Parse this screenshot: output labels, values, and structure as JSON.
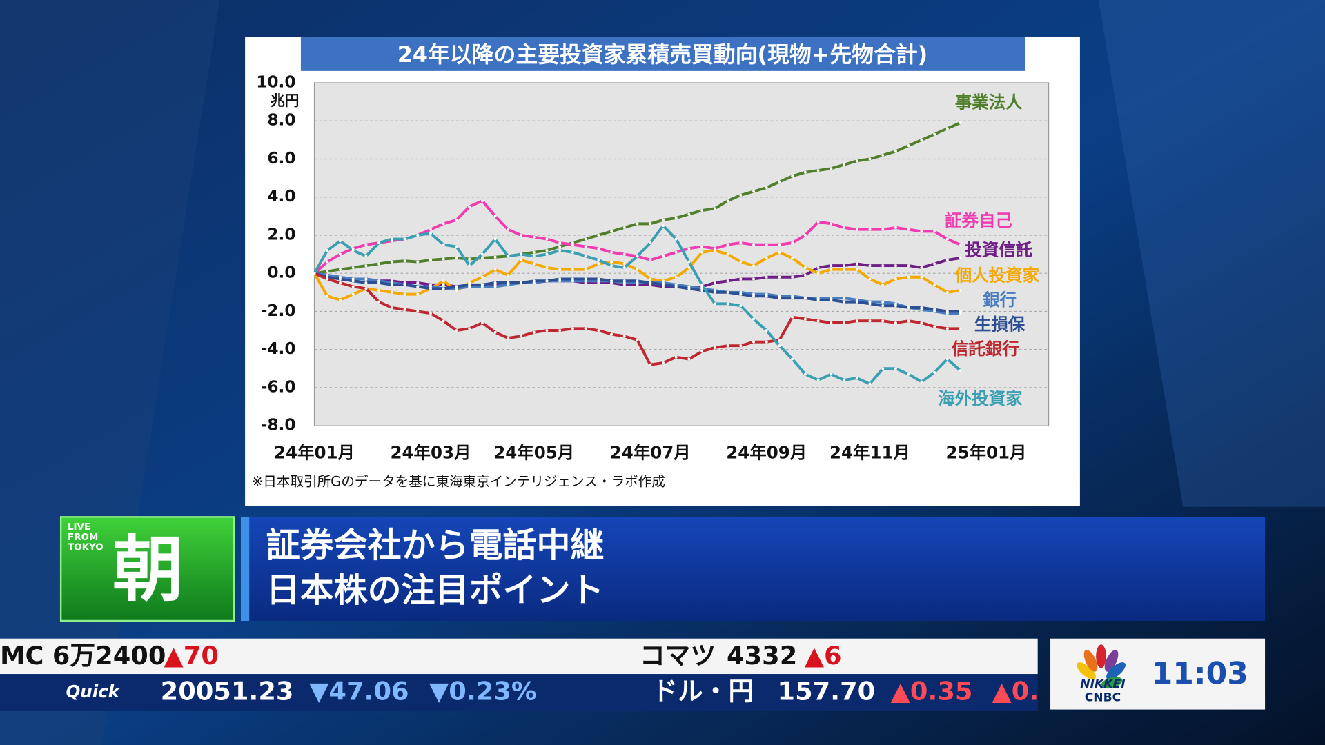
{
  "chart_data": {
    "type": "line",
    "title": "24年以降の主要投資家累積売買動向(現物+先物合計)",
    "y_unit": "兆円",
    "note": "※日本取引所Gのデータを基に東海東京インテリジェンス・ラボ作成",
    "categories": [
      "24年01月",
      null,
      null,
      null,
      null,
      null,
      null,
      null,
      null,
      "24年03月",
      null,
      null,
      null,
      null,
      null,
      null,
      null,
      "24年05月",
      null,
      null,
      null,
      null,
      null,
      null,
      null,
      null,
      "24年07月",
      null,
      null,
      null,
      null,
      null,
      null,
      null,
      null,
      "24年09月",
      null,
      null,
      null,
      null,
      null,
      null,
      null,
      "24年11月",
      null,
      null,
      null,
      null,
      null,
      null,
      null,
      null,
      "25年01月"
    ],
    "ylim": [
      -8,
      10
    ],
    "yticks": [
      {
        "value": 10,
        "label": "10.0"
      },
      {
        "value": 8,
        "label": "8.0"
      },
      {
        "value": 6,
        "label": "6.0"
      },
      {
        "value": 4,
        "label": "4.0"
      },
      {
        "value": 2,
        "label": "2.0"
      },
      {
        "value": 0,
        "label": "0.0"
      },
      {
        "value": -2,
        "label": "-2.0"
      },
      {
        "value": -4,
        "label": "-4.0"
      },
      {
        "value": -6,
        "label": "-6.0"
      },
      {
        "value": -8,
        "label": "-8.0"
      }
    ],
    "grid": true,
    "series": [
      {
        "name": "事業法人",
        "color": "#4f7f2a",
        "values": [
          0,
          0.1,
          0.2,
          0.3,
          0.4,
          0.5,
          0.6,
          0.65,
          0.6,
          0.7,
          0.75,
          0.8,
          0.75,
          0.8,
          0.85,
          0.9,
          1.0,
          1.1,
          1.2,
          1.4,
          1.6,
          1.8,
          2.0,
          2.2,
          2.4,
          2.6,
          2.6,
          2.8,
          2.9,
          3.1,
          3.3,
          3.4,
          3.8,
          4.1,
          4.3,
          4.5,
          4.8,
          5.1,
          5.3,
          5.4,
          5.5,
          5.7,
          5.9,
          6.0,
          6.2,
          6.4,
          6.7,
          7.0,
          7.3,
          7.6,
          7.9,
          null,
          null
        ]
      },
      {
        "name": "証券自己",
        "color": "#f03cb0",
        "values": [
          0,
          0.6,
          1.0,
          1.3,
          1.5,
          1.6,
          1.7,
          1.8,
          2.0,
          2.3,
          2.6,
          2.8,
          3.5,
          3.8,
          3.0,
          2.3,
          2.0,
          1.9,
          1.8,
          1.6,
          1.5,
          1.4,
          1.3,
          1.1,
          1.0,
          0.9,
          0.7,
          0.9,
          1.1,
          1.3,
          1.4,
          1.3,
          1.5,
          1.6,
          1.5,
          1.5,
          1.5,
          1.6,
          2.0,
          2.7,
          2.6,
          2.4,
          2.3,
          2.3,
          2.3,
          2.4,
          2.3,
          2.2,
          2.2,
          1.8,
          1.5,
          null,
          null
        ]
      },
      {
        "name": "投資信託",
        "color": "#6e1e86",
        "values": [
          0,
          -0.1,
          -0.2,
          -0.3,
          -0.3,
          -0.4,
          -0.4,
          -0.5,
          -0.5,
          -0.6,
          -0.6,
          -0.7,
          -0.7,
          -0.6,
          -0.6,
          -0.5,
          -0.5,
          -0.5,
          -0.4,
          -0.4,
          -0.4,
          -0.5,
          -0.5,
          -0.5,
          -0.6,
          -0.6,
          -0.6,
          -0.7,
          -0.7,
          -0.8,
          -0.7,
          -0.5,
          -0.4,
          -0.3,
          -0.3,
          -0.2,
          -0.2,
          -0.2,
          -0.1,
          0.3,
          0.4,
          0.4,
          0.5,
          0.4,
          0.4,
          0.4,
          0.4,
          0.3,
          0.5,
          0.7,
          0.8,
          null,
          null
        ]
      },
      {
        "name": "個人投資家",
        "color": "#f5a800",
        "values": [
          0,
          -1.2,
          -1.4,
          -1.1,
          -0.8,
          -0.9,
          -1.0,
          -1.1,
          -1.1,
          -0.8,
          -0.4,
          -0.9,
          -0.5,
          -0.2,
          0.2,
          -0.1,
          0.7,
          0.5,
          0.3,
          0.2,
          0.2,
          0.2,
          0.5,
          0.6,
          0.5,
          0.2,
          -0.3,
          -0.4,
          -0.2,
          0.3,
          1.1,
          1.2,
          1.0,
          0.6,
          0.4,
          0.8,
          1.1,
          0.8,
          0.3,
          0.0,
          0.2,
          0.2,
          0.2,
          -0.3,
          -0.6,
          -0.3,
          -0.2,
          -0.2,
          -0.6,
          -1.0,
          -0.9,
          null,
          null
        ]
      },
      {
        "name": "銀行",
        "color": "#4a7cc0",
        "values": [
          0,
          -0.1,
          -0.2,
          -0.3,
          -0.3,
          -0.4,
          -0.5,
          -0.6,
          -0.7,
          -0.7,
          -0.8,
          -0.8,
          -0.7,
          -0.7,
          -0.7,
          -0.6,
          -0.5,
          -0.5,
          -0.4,
          -0.4,
          -0.4,
          -0.4,
          -0.4,
          -0.4,
          -0.5,
          -0.5,
          -0.5,
          -0.5,
          -0.6,
          -0.7,
          -0.8,
          -0.9,
          -1.0,
          -1.0,
          -1.1,
          -1.1,
          -1.2,
          -1.2,
          -1.3,
          -1.3,
          -1.3,
          -1.3,
          -1.4,
          -1.5,
          -1.5,
          -1.6,
          -1.8,
          -1.9,
          -2.0,
          -2.1,
          -2.1,
          null,
          null
        ]
      },
      {
        "name": "生損保",
        "color": "#2b4f92",
        "values": [
          0,
          -0.2,
          -0.3,
          -0.4,
          -0.5,
          -0.5,
          -0.6,
          -0.6,
          -0.7,
          -0.8,
          -0.8,
          -0.7,
          -0.6,
          -0.6,
          -0.5,
          -0.5,
          -0.5,
          -0.4,
          -0.4,
          -0.3,
          -0.3,
          -0.3,
          -0.3,
          -0.4,
          -0.4,
          -0.4,
          -0.5,
          -0.6,
          -0.7,
          -0.8,
          -0.9,
          -1.0,
          -1.0,
          -1.1,
          -1.2,
          -1.2,
          -1.3,
          -1.3,
          -1.3,
          -1.4,
          -1.4,
          -1.5,
          -1.5,
          -1.6,
          -1.7,
          -1.7,
          -1.8,
          -1.8,
          -1.9,
          -2.0,
          -2.0,
          null,
          null
        ]
      },
      {
        "name": "信託銀行",
        "color": "#c0262d",
        "values": [
          0,
          -0.3,
          -0.5,
          -0.7,
          -0.8,
          -1.5,
          -1.8,
          -1.9,
          -2.0,
          -2.1,
          -2.5,
          -3.0,
          -2.9,
          -2.6,
          -3.1,
          -3.4,
          -3.3,
          -3.1,
          -3.0,
          -3.0,
          -2.9,
          -2.9,
          -3.0,
          -3.2,
          -3.3,
          -3.5,
          -4.8,
          -4.7,
          -4.4,
          -4.5,
          -4.1,
          -3.9,
          -3.8,
          -3.8,
          -3.6,
          -3.6,
          -3.5,
          -2.3,
          -2.4,
          -2.5,
          -2.6,
          -2.6,
          -2.5,
          -2.5,
          -2.5,
          -2.6,
          -2.5,
          -2.6,
          -2.8,
          -2.9,
          -2.9,
          null,
          null
        ]
      },
      {
        "name": "海外投資家",
        "color": "#3a9fb2",
        "values": [
          0,
          1.2,
          1.7,
          1.2,
          0.9,
          1.6,
          1.8,
          1.8,
          2.0,
          2.1,
          1.5,
          1.4,
          0.4,
          1.0,
          1.8,
          0.9,
          1.0,
          0.9,
          1.0,
          1.2,
          1.1,
          0.9,
          0.7,
          0.4,
          0.3,
          0.9,
          1.6,
          2.5,
          1.8,
          0.6,
          -0.6,
          -1.6,
          -1.6,
          -1.7,
          -2.4,
          -3.0,
          -3.8,
          -4.5,
          -5.3,
          -5.6,
          -5.3,
          -5.6,
          -5.5,
          -5.8,
          -5.0,
          -5.0,
          -5.3,
          -5.7,
          -5.2,
          -4.5,
          -5.1,
          null,
          null
        ]
      }
    ]
  },
  "banner": {
    "tag": [
      "LIVE",
      "FROM",
      "TOKYO"
    ],
    "program": "朝",
    "headlines": [
      "証券会社から電話中継",
      "日本株の注目ポイント"
    ]
  },
  "ticker": {
    "stocks": [
      {
        "name": "MC",
        "price": "6万2400",
        "change": "▲70"
      },
      {
        "name": "コマツ",
        "price": "4332",
        "change": "▲6"
      }
    ],
    "market": {
      "source": "Quick",
      "index": "20051.23",
      "change": "▼47.06",
      "percent": "▼0.23%",
      "fx_name": "ドル・円",
      "fx": "157.70",
      "fx_change": "▲0.35",
      "fx_percent": "▲0."
    }
  },
  "logo": [
    "NIKKEI",
    "CNBC"
  ],
  "clock": "11:03"
}
